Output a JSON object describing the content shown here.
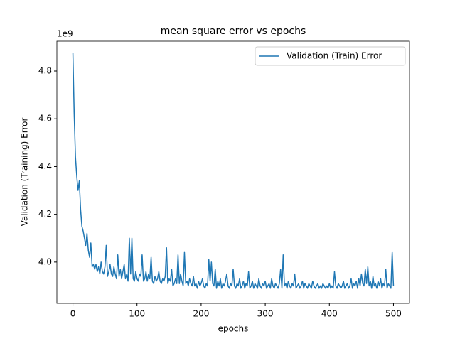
{
  "chart_data": {
    "type": "line",
    "title": "mean square error vs epochs",
    "xlabel": "epochs",
    "ylabel": "Validation (Training) Error",
    "y_offset_label": "1e9",
    "legend_loc": "upper right",
    "xlim": [
      -25,
      525
    ],
    "ylim": [
      3.827,
      4.925
    ],
    "xticks": [
      0,
      100,
      200,
      300,
      400,
      500
    ],
    "yticks": [
      {
        "value": 4.0,
        "label": "4.0"
      },
      {
        "value": 4.2,
        "label": "4.2"
      },
      {
        "value": 4.4,
        "label": "4.4"
      },
      {
        "value": 4.6,
        "label": "4.6"
      },
      {
        "value": 4.8,
        "label": "4.8"
      }
    ],
    "x": [
      0,
      2,
      4,
      6,
      8,
      10,
      12,
      14,
      16,
      18,
      20,
      22,
      24,
      26,
      28,
      30,
      32,
      34,
      36,
      38,
      40,
      42,
      44,
      46,
      48,
      50,
      52,
      54,
      56,
      58,
      60,
      62,
      64,
      66,
      68,
      70,
      72,
      74,
      76,
      78,
      80,
      82,
      84,
      86,
      88,
      90,
      92,
      94,
      96,
      98,
      100,
      102,
      104,
      106,
      108,
      110,
      112,
      114,
      116,
      118,
      120,
      122,
      124,
      126,
      128,
      130,
      132,
      134,
      136,
      138,
      140,
      142,
      144,
      146,
      148,
      150,
      152,
      154,
      156,
      158,
      160,
      162,
      164,
      166,
      168,
      170,
      172,
      174,
      176,
      178,
      180,
      182,
      184,
      186,
      188,
      190,
      192,
      194,
      196,
      198,
      200,
      202,
      204,
      206,
      208,
      210,
      212,
      214,
      216,
      218,
      220,
      222,
      224,
      226,
      228,
      230,
      232,
      234,
      236,
      238,
      240,
      242,
      244,
      246,
      248,
      250,
      252,
      254,
      256,
      258,
      260,
      262,
      264,
      266,
      268,
      270,
      272,
      274,
      276,
      278,
      280,
      282,
      284,
      286,
      288,
      290,
      292,
      294,
      296,
      298,
      300,
      302,
      304,
      306,
      308,
      310,
      312,
      314,
      316,
      318,
      320,
      322,
      324,
      326,
      328,
      330,
      332,
      334,
      336,
      338,
      340,
      342,
      344,
      346,
      348,
      350,
      352,
      354,
      356,
      358,
      360,
      362,
      364,
      366,
      368,
      370,
      372,
      374,
      376,
      378,
      380,
      382,
      384,
      386,
      388,
      390,
      392,
      394,
      396,
      398,
      400,
      402,
      404,
      406,
      408,
      410,
      412,
      414,
      416,
      418,
      420,
      422,
      424,
      426,
      428,
      430,
      432,
      434,
      436,
      438,
      440,
      442,
      444,
      446,
      448,
      450,
      452,
      454,
      456,
      458,
      460,
      462,
      464,
      466,
      468,
      470,
      472,
      474,
      476,
      478,
      480,
      482,
      484,
      486,
      488,
      490,
      492,
      494,
      496,
      498,
      500
    ],
    "series": [
      {
        "name": "Validation (Train) Error",
        "color": "#1f77b4",
        "values": [
          4.875,
          4.62,
          4.44,
          4.36,
          4.3,
          4.34,
          4.22,
          4.15,
          4.13,
          4.1,
          4.07,
          4.12,
          4.05,
          4.02,
          4.08,
          3.98,
          3.99,
          3.97,
          3.99,
          3.96,
          3.98,
          3.95,
          4.0,
          3.96,
          3.95,
          3.98,
          4.07,
          3.94,
          3.96,
          3.99,
          3.95,
          3.94,
          3.98,
          3.95,
          3.93,
          4.03,
          3.94,
          3.97,
          3.93,
          3.96,
          3.99,
          3.93,
          3.95,
          3.92,
          4.1,
          3.95,
          4.1,
          3.93,
          3.92,
          3.96,
          3.93,
          3.92,
          3.95,
          3.94,
          4.03,
          3.92,
          3.93,
          3.96,
          3.92,
          3.95,
          3.93,
          4.02,
          3.92,
          3.91,
          3.94,
          3.92,
          3.93,
          3.96,
          3.92,
          3.91,
          3.93,
          3.92,
          3.94,
          4.06,
          3.91,
          3.93,
          3.92,
          3.97,
          3.9,
          3.91,
          3.93,
          3.91,
          4.03,
          3.91,
          3.95,
          3.92,
          3.9,
          4.04,
          3.91,
          3.92,
          3.9,
          3.93,
          3.91,
          3.9,
          3.94,
          3.9,
          3.91,
          3.89,
          3.92,
          3.9,
          3.91,
          3.93,
          3.9,
          3.89,
          3.91,
          3.9,
          4.01,
          3.92,
          4.0,
          3.91,
          3.9,
          3.97,
          3.89,
          3.92,
          3.9,
          3.93,
          3.89,
          3.91,
          3.9,
          3.92,
          3.95,
          3.9,
          3.89,
          3.91,
          3.9,
          3.97,
          3.9,
          3.89,
          3.91,
          3.9,
          3.93,
          3.89,
          3.9,
          3.92,
          3.89,
          3.91,
          3.9,
          3.96,
          3.89,
          3.9,
          3.92,
          3.89,
          3.91,
          3.9,
          3.89,
          3.93,
          3.9,
          3.89,
          3.91,
          3.9,
          3.92,
          3.89,
          3.9,
          3.91,
          3.89,
          3.93,
          3.9,
          3.89,
          3.91,
          3.9,
          3.89,
          3.91,
          3.97,
          3.89,
          4.03,
          3.9,
          3.91,
          3.89,
          3.92,
          3.9,
          3.89,
          3.91,
          3.9,
          3.95,
          3.89,
          3.9,
          3.91,
          3.89,
          3.9,
          3.92,
          3.89,
          3.91,
          3.9,
          3.89,
          3.91,
          3.9,
          3.89,
          3.92,
          3.9,
          3.89,
          3.9,
          3.91,
          3.89,
          3.9,
          3.89,
          3.91,
          3.9,
          3.89,
          3.9,
          3.89,
          3.91,
          3.89,
          3.9,
          3.89,
          3.96,
          3.9,
          3.89,
          3.91,
          3.9,
          3.89,
          3.9,
          3.92,
          3.89,
          3.9,
          3.91,
          3.89,
          3.9,
          3.93,
          3.89,
          3.91,
          3.9,
          3.92,
          3.89,
          3.93,
          3.9,
          3.95,
          3.91,
          3.9,
          3.97,
          3.91,
          3.98,
          3.9,
          3.92,
          3.89,
          3.94,
          3.9,
          3.91,
          3.89,
          3.92,
          3.9,
          3.93,
          3.89,
          3.91,
          3.9,
          3.97,
          3.89,
          3.91,
          3.9,
          3.89,
          4.04,
          3.9
        ]
      }
    ]
  }
}
